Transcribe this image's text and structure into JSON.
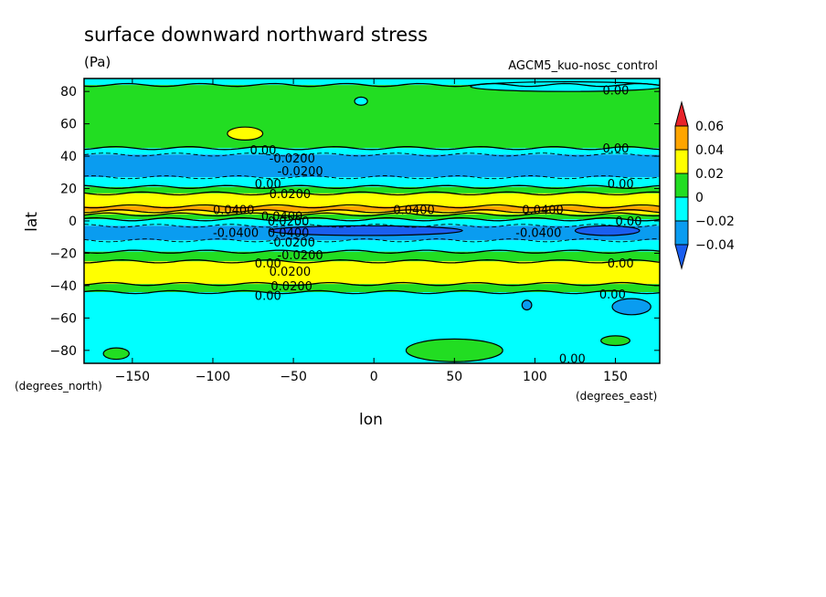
{
  "chart_data": {
    "type": "heatmap",
    "title": "surface downward northward stress",
    "units": "(Pa)",
    "run_label": "AGCM5_kuo-nosc_control",
    "xlabel": "lon",
    "ylabel": "lat",
    "x_units": "(degrees_east)",
    "y_units": "(degrees_north)",
    "xlim": [
      -180,
      177.5
    ],
    "ylim": [
      -88,
      88
    ],
    "x_ticks": [
      {
        "v": -150,
        "label": "−150"
      },
      {
        "v": -100,
        "label": "−100"
      },
      {
        "v": -50,
        "label": "−50"
      },
      {
        "v": 0,
        "label": "0"
      },
      {
        "v": 50,
        "label": "50"
      },
      {
        "v": 100,
        "label": "100"
      },
      {
        "v": 150,
        "label": "150"
      }
    ],
    "y_ticks": [
      {
        "v": 80,
        "label": "80"
      },
      {
        "v": 60,
        "label": "60"
      },
      {
        "v": 40,
        "label": "40"
      },
      {
        "v": 20,
        "label": "20"
      },
      {
        "v": 0,
        "label": "0"
      },
      {
        "v": -20,
        "label": "−20"
      },
      {
        "v": -40,
        "label": "−40"
      },
      {
        "v": -60,
        "label": "−60"
      },
      {
        "v": -80,
        "label": "−80"
      }
    ],
    "colorbar": {
      "levels": [
        {
          "v": 0.06,
          "label": "0.06"
        },
        {
          "v": 0.04,
          "label": "0.04"
        },
        {
          "v": 0.02,
          "label": "0.02"
        },
        {
          "v": 0,
          "label": "0"
        },
        {
          "v": -0.02,
          "label": "−0.02"
        },
        {
          "v": -0.04,
          "label": "−0.04"
        }
      ],
      "colors": [
        "#e8232a",
        "#ffa500",
        "#ffff00",
        "#22dd22",
        "#00ffff",
        "#0a9cf0",
        "#1a5ef0"
      ]
    },
    "bands": [
      {
        "lat_from": 88,
        "lat_to": 84,
        "color": "#00ffff"
      },
      {
        "lat_from": 84,
        "lat_to": 45,
        "color": "#22dd22"
      },
      {
        "lat_from": 45,
        "lat_to": 41,
        "color": "#00ffff"
      },
      {
        "lat_from": 41,
        "lat_to": 27,
        "color": "#0a9cf0"
      },
      {
        "lat_from": 27,
        "lat_to": 21,
        "color": "#00ffff"
      },
      {
        "lat_from": 21,
        "lat_to": 17,
        "color": "#22dd22"
      },
      {
        "lat_from": 17,
        "lat_to": 9,
        "color": "#ffff00"
      },
      {
        "lat_from": 9,
        "lat_to": 6,
        "color": "#ffa500"
      },
      {
        "lat_from": 6,
        "lat_to": 4,
        "color": "#ffff00"
      },
      {
        "lat_from": 4,
        "lat_to": 1,
        "color": "#22dd22"
      },
      {
        "lat_from": 1,
        "lat_to": -3,
        "color": "#00ffff"
      },
      {
        "lat_from": -3,
        "lat_to": -12,
        "color": "#0a9cf0"
      },
      {
        "lat_from": -12,
        "lat_to": -19,
        "color": "#00ffff"
      },
      {
        "lat_from": -19,
        "lat_to": -25,
        "color": "#22dd22"
      },
      {
        "lat_from": -25,
        "lat_to": -39,
        "color": "#ffff00"
      },
      {
        "lat_from": -39,
        "lat_to": -44,
        "color": "#22dd22"
      },
      {
        "lat_from": -44,
        "lat_to": -88,
        "color": "#00ffff"
      }
    ],
    "blobs": [
      {
        "lon": -160,
        "lat": -82,
        "rlon": 8,
        "rlat": 3.5,
        "color": "#22dd22"
      },
      {
        "lon": 50,
        "lat": -80,
        "rlon": 30,
        "rlat": 7,
        "color": "#22dd22"
      },
      {
        "lon": 150,
        "lat": -74,
        "rlon": 9,
        "rlat": 3,
        "color": "#22dd22"
      },
      {
        "lon": -80,
        "lat": 54,
        "rlon": 11,
        "rlat": 4,
        "color": "#ffff00"
      },
      {
        "lon": -8,
        "lat": 74,
        "rlon": 4,
        "rlat": 2.5,
        "color": "#00ffff"
      },
      {
        "lon": 120,
        "lat": 83,
        "rlon": 60,
        "rlat": 3,
        "color": "#00ffff"
      },
      {
        "lon": -5,
        "lat": -6,
        "rlon": 60,
        "rlat": 3,
        "color": "#1a5ef0"
      },
      {
        "lon": 145,
        "lat": -6,
        "rlon": 20,
        "rlat": 3,
        "color": "#1a5ef0"
      },
      {
        "lon": 160,
        "lat": -53,
        "rlon": 12,
        "rlat": 5,
        "color": "#0a9cf0"
      },
      {
        "lon": 95,
        "lat": -52,
        "rlon": 3,
        "rlat": 3,
        "color": "#0a9cf0"
      }
    ],
    "contour_labels": [
      {
        "lon": 142,
        "lat": 81,
        "text": "0.00"
      },
      {
        "lon": -77,
        "lat": 44,
        "text": "0.00"
      },
      {
        "lon": -65,
        "lat": 39,
        "text": "-0.0200"
      },
      {
        "lon": -60,
        "lat": 31,
        "text": "-0.0200"
      },
      {
        "lon": -74,
        "lat": 23,
        "text": "0.00"
      },
      {
        "lon": -65,
        "lat": 17,
        "text": "0.0200"
      },
      {
        "lon": 142,
        "lat": 45,
        "text": "0.00"
      },
      {
        "lon": 145,
        "lat": 23,
        "text": "0.00"
      },
      {
        "lon": -100,
        "lat": 7,
        "text": "0.0400"
      },
      {
        "lon": 12,
        "lat": 7,
        "text": "0.0400"
      },
      {
        "lon": 92,
        "lat": 7,
        "text": "0.0400"
      },
      {
        "lon": -70,
        "lat": 3,
        "text": "0.0400"
      },
      {
        "lon": -66,
        "lat": 0,
        "text": "0.0200"
      },
      {
        "lon": 150,
        "lat": 0,
        "text": "0.00"
      },
      {
        "lon": -100,
        "lat": -7,
        "text": "-0.0400"
      },
      {
        "lon": -66,
        "lat": -7,
        "text": "0.0400"
      },
      {
        "lon": 88,
        "lat": -7,
        "text": "-0.0400"
      },
      {
        "lon": -65,
        "lat": -13,
        "text": "-0.0200"
      },
      {
        "lon": -60,
        "lat": -21,
        "text": "-0.0200"
      },
      {
        "lon": -74,
        "lat": -26,
        "text": "0.00"
      },
      {
        "lon": -65,
        "lat": -31,
        "text": "0.0200"
      },
      {
        "lon": -64,
        "lat": -40,
        "text": "0.0200"
      },
      {
        "lon": -74,
        "lat": -46,
        "text": "0.00"
      },
      {
        "lon": 140,
        "lat": -45,
        "text": "0.00"
      },
      {
        "lon": 115,
        "lat": -85,
        "text": "0.00"
      },
      {
        "lon": 145,
        "lat": -26,
        "text": "0.00"
      }
    ]
  }
}
